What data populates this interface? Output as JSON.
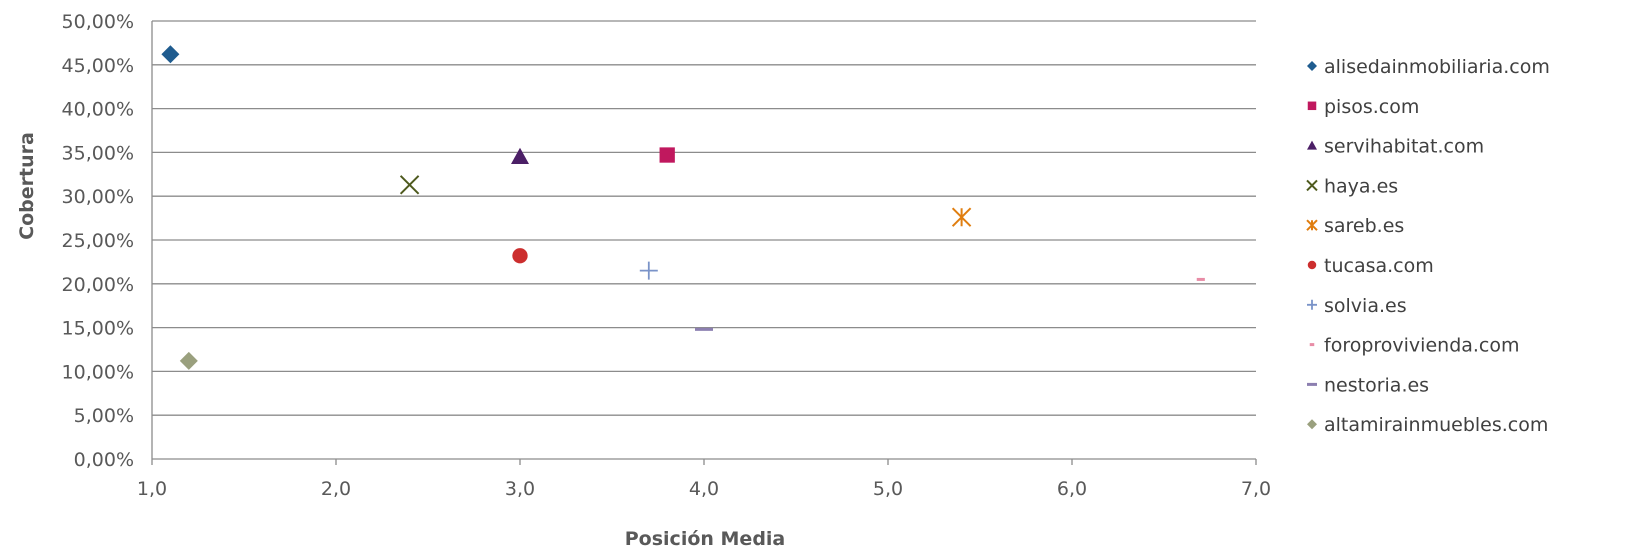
{
  "chart_data": {
    "type": "scatter",
    "title": "",
    "xlabel": "Posición Media",
    "ylabel": "Cobertura",
    "xlim": [
      1.0,
      7.0
    ],
    "ylim": [
      0,
      0.5
    ],
    "x_ticks": [
      "1,0",
      "2,0",
      "3,0",
      "4,0",
      "5,0",
      "6,0",
      "7,0"
    ],
    "y_ticks": [
      "0,00%",
      "5,00%",
      "10,00%",
      "15,00%",
      "20,00%",
      "25,00%",
      "30,00%",
      "35,00%",
      "40,00%",
      "45,00%",
      "50,00%"
    ],
    "grid": "horizontal",
    "legend_position": "right",
    "series": [
      {
        "name": "alisedainmobiliaria.com",
        "x": 1.1,
        "y": 0.462,
        "marker": "diamond",
        "color": "#1F5C8F"
      },
      {
        "name": "pisos.com",
        "x": 3.8,
        "y": 0.347,
        "marker": "square",
        "color": "#C0185E"
      },
      {
        "name": "servihabitat.com",
        "x": 3.0,
        "y": 0.345,
        "marker": "triangle",
        "color": "#4B1F66"
      },
      {
        "name": "haya.es",
        "x": 2.4,
        "y": 0.313,
        "marker": "x",
        "color": "#4E5A1E"
      },
      {
        "name": "sareb.es",
        "x": 5.4,
        "y": 0.276,
        "marker": "star",
        "color": "#E07E10"
      },
      {
        "name": "tucasa.com",
        "x": 3.0,
        "y": 0.232,
        "marker": "circle",
        "color": "#CC2E2E"
      },
      {
        "name": "solvia.es",
        "x": 3.7,
        "y": 0.215,
        "marker": "plus",
        "color": "#7A93C8"
      },
      {
        "name": "foroprovivienda.com",
        "x": 6.7,
        "y": 0.205,
        "marker": "dash",
        "color": "#E88CA6"
      },
      {
        "name": "nestoria.es",
        "x": 4.0,
        "y": 0.148,
        "marker": "long-dash",
        "color": "#8C7FB0"
      },
      {
        "name": "altamirainmuebles.com",
        "x": 1.2,
        "y": 0.112,
        "marker": "diamond",
        "color": "#9AA07E"
      }
    ]
  }
}
